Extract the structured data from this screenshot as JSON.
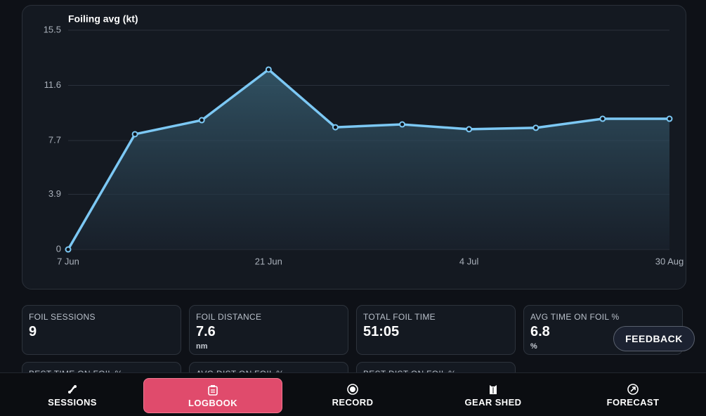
{
  "chart_data": {
    "type": "line",
    "title": "Foiling avg (kt)",
    "categories": [
      "7 Jun",
      null,
      null,
      "21 Jun",
      null,
      null,
      "4 Jul",
      null,
      null,
      "30 Aug"
    ],
    "series": [
      {
        "name": "Foiling avg",
        "color": "#7cc8f4",
        "values": [
          0,
          8.15,
          9.14,
          12.72,
          8.64,
          8.84,
          8.5,
          8.6,
          9.24,
          9.24
        ]
      }
    ],
    "ylim": [
      0,
      15.5
    ],
    "yticks": [
      0,
      3.9,
      7.7,
      11.6,
      15.5
    ],
    "grid": true
  },
  "stats": [
    {
      "label": "FOIL SESSIONS",
      "value": "9"
    },
    {
      "label": "FOIL DISTANCE",
      "value": "7.6",
      "unit": "nm"
    },
    {
      "label": "TOTAL FOIL TIME",
      "value": "51:05"
    },
    {
      "label": "AVG TIME ON FOIL %",
      "value": "6.8",
      "unit": "%"
    },
    {
      "label": "BEST TIME ON FOIL %"
    },
    {
      "label": "AVG DIST ON FOIL %"
    },
    {
      "label": "BEST DIST ON FOIL %"
    }
  ],
  "feedback": "FEEDBACK",
  "nav": [
    "SESSIONS",
    "LOGBOOK",
    "RECORD",
    "GEAR SHED",
    "FORECAST"
  ]
}
